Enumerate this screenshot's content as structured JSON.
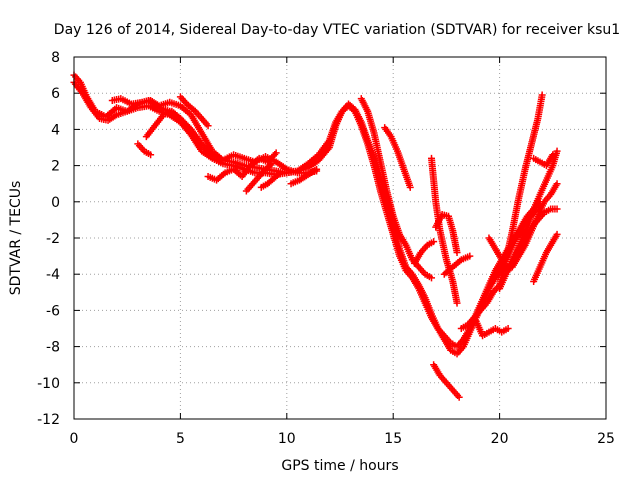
{
  "chart_data": {
    "type": "scatter",
    "title": "Day 126 of 2014, Sidereal Day-to-day VTEC variation (SDTVAR) for receiver ksu1",
    "xlabel": "GPS time / hours",
    "ylabel": "SDTVAR / TECUs",
    "xlim": [
      0,
      25
    ],
    "ylim": [
      -12,
      8
    ],
    "x_ticks": [
      0,
      5,
      10,
      15,
      20,
      25
    ],
    "y_ticks": [
      -12,
      -10,
      -8,
      -6,
      -4,
      -2,
      0,
      2,
      4,
      6,
      8
    ],
    "grid": true,
    "marker": "+",
    "color": "#ff0000",
    "series": [
      {
        "x": [
          0.0,
          0.3,
          0.6,
          1.0,
          1.5,
          2.0,
          2.5,
          3.0,
          3.5,
          4.0,
          4.5,
          5.0,
          5.5,
          6.0,
          6.5,
          7.0,
          7.5,
          8.0,
          8.5,
          9.0,
          9.5,
          10.0,
          10.5,
          11.0,
          11.5,
          12.0,
          12.3,
          12.6,
          12.9,
          13.2,
          13.5,
          13.8,
          14.1,
          14.4,
          14.7,
          15.0,
          15.3,
          15.6,
          15.9,
          16.2,
          16.5,
          16.8,
          17.1,
          17.4,
          17.7,
          18.0,
          18.3,
          18.6,
          18.9,
          19.2,
          19.5,
          19.8,
          20.1,
          20.4,
          20.7,
          21.0,
          21.3,
          21.6,
          21.9
        ],
        "y": [
          7.0,
          6.6,
          5.8,
          5.0,
          4.7,
          5.2,
          5.0,
          5.4,
          5.6,
          5.2,
          5.0,
          4.6,
          4.0,
          3.2,
          2.6,
          2.3,
          2.2,
          2.0,
          1.9,
          1.8,
          1.7,
          1.6,
          1.7,
          1.9,
          2.3,
          3.0,
          4.2,
          5.0,
          5.4,
          5.1,
          4.4,
          3.4,
          2.5,
          1.4,
          0.2,
          -1.2,
          -2.6,
          -3.6,
          -4.0,
          -4.6,
          -5.3,
          -6.2,
          -7.0,
          -7.6,
          -8.2,
          -8.4,
          -8.0,
          -7.2,
          -6.4,
          -5.6,
          -4.8,
          -4.2,
          -3.6,
          -3.0,
          -2.2,
          -1.6,
          -1.0,
          -0.6,
          -0.2
        ]
      },
      {
        "x": [
          0.0,
          0.4,
          0.8,
          1.2,
          1.6,
          2.0,
          2.5,
          3.0,
          3.5,
          4.0,
          4.5,
          5.0,
          5.5,
          6.0,
          6.5,
          7.0,
          7.5,
          8.0,
          8.5,
          9.0,
          9.5,
          10.0,
          10.5,
          11.0,
          11.5,
          12.0,
          12.3,
          12.6,
          12.9,
          13.2,
          13.5,
          13.8,
          14.1,
          14.4,
          14.7,
          15.0,
          15.3,
          15.6,
          15.9,
          16.2,
          16.5,
          16.8,
          17.1,
          17.4,
          17.7,
          18.0,
          18.3,
          18.6,
          18.9,
          19.2,
          19.5,
          19.8,
          20.1,
          20.4,
          20.7,
          21.0,
          21.3,
          21.6,
          21.9
        ],
        "y": [
          6.6,
          6.0,
          5.2,
          4.6,
          4.5,
          4.8,
          5.0,
          5.2,
          5.3,
          5.0,
          4.8,
          4.4,
          3.7,
          2.8,
          2.4,
          2.1,
          2.0,
          1.8,
          1.6,
          1.6,
          1.5,
          1.6,
          1.7,
          2.1,
          2.6,
          3.4,
          4.4,
          5.0,
          5.3,
          5.0,
          4.2,
          3.2,
          2.0,
          0.6,
          -0.6,
          -1.8,
          -3.0,
          -3.8,
          -4.2,
          -4.8,
          -5.6,
          -6.4,
          -7.0,
          -7.4,
          -7.8,
          -8.0,
          -7.6,
          -7.0,
          -6.2,
          -5.4,
          -4.6,
          -3.8,
          -3.2,
          -2.6,
          -2.0,
          -1.4,
          -0.8,
          -0.4,
          0.0
        ]
      },
      {
        "x": [
          1.8,
          2.2,
          2.7,
          3.2,
          3.6,
          4.0,
          4.5,
          5.0,
          5.5,
          6.0,
          6.5,
          7.0,
          7.5,
          8.0,
          8.5,
          9.0,
          9.5,
          10.0,
          10.5,
          11.0,
          11.4
        ],
        "y": [
          5.6,
          5.7,
          5.4,
          5.5,
          5.6,
          5.3,
          5.5,
          5.3,
          4.8,
          3.8,
          2.8,
          2.3,
          2.6,
          2.4,
          2.2,
          2.5,
          2.2,
          1.8,
          1.6,
          1.6,
          1.7
        ]
      },
      {
        "x": [
          3.4,
          3.8,
          4.2,
          4.6,
          5.0,
          5.4
        ],
        "y": [
          3.6,
          4.2,
          4.8,
          5.0,
          4.6,
          4.0
        ]
      },
      {
        "x": [
          3.0,
          3.3,
          3.6
        ],
        "y": [
          3.2,
          2.8,
          2.6
        ]
      },
      {
        "x": [
          5.0,
          5.3,
          5.7,
          6.0,
          6.3
        ],
        "y": [
          5.8,
          5.4,
          5.0,
          4.6,
          4.2
        ]
      },
      {
        "x": [
          6.3,
          6.7,
          7.1,
          7.5,
          7.9,
          8.3,
          8.7,
          9.1,
          9.5
        ],
        "y": [
          1.4,
          1.2,
          1.6,
          1.8,
          1.4,
          2.0,
          2.4,
          2.2,
          2.7
        ]
      },
      {
        "x": [
          8.1,
          8.4,
          8.7,
          9.0,
          9.3
        ],
        "y": [
          0.6,
          1.0,
          1.4,
          1.8,
          2.1
        ]
      },
      {
        "x": [
          8.8,
          9.1,
          9.4,
          9.7
        ],
        "y": [
          0.8,
          1.0,
          1.3,
          1.6
        ]
      },
      {
        "x": [
          10.2,
          10.6,
          11.0,
          11.4
        ],
        "y": [
          1.0,
          1.2,
          1.5,
          1.8
        ]
      },
      {
        "x": [
          13.5,
          13.8,
          14.1,
          14.4,
          14.7,
          15.0,
          15.3,
          15.6,
          15.9,
          16.2,
          16.5,
          16.8
        ],
        "y": [
          5.7,
          5.0,
          3.8,
          2.2,
          0.6,
          -0.8,
          -1.8,
          -2.4,
          -3.2,
          -3.6,
          -4.0,
          -4.2
        ]
      },
      {
        "x": [
          14.6,
          14.9,
          15.2,
          15.5,
          15.8
        ],
        "y": [
          4.1,
          3.6,
          2.8,
          1.8,
          0.8
        ]
      },
      {
        "x": [
          16.0,
          16.3,
          16.6,
          16.9
        ],
        "y": [
          -3.4,
          -2.8,
          -2.4,
          -2.2
        ]
      },
      {
        "x": [
          16.8,
          17.0,
          17.2,
          17.5,
          17.8,
          18.0
        ],
        "y": [
          2.4,
          0.0,
          -1.6,
          -3.2,
          -4.4,
          -5.6
        ]
      },
      {
        "x": [
          17.0,
          17.3,
          17.6,
          17.8,
          18.0
        ],
        "y": [
          -1.4,
          -0.7,
          -0.8,
          -1.6,
          -2.8
        ]
      },
      {
        "x": [
          17.4,
          17.8,
          18.2,
          18.6
        ],
        "y": [
          -4.0,
          -3.6,
          -3.2,
          -3.0
        ]
      },
      {
        "x": [
          16.9,
          17.2,
          17.5,
          17.8,
          18.1
        ],
        "y": [
          -9.0,
          -9.6,
          -10.0,
          -10.4,
          -10.8
        ]
      },
      {
        "x": [
          19.5,
          19.8,
          20.1,
          20.4
        ],
        "y": [
          -2.0,
          -2.6,
          -3.2,
          -3.8
        ]
      },
      {
        "x": [
          18.9,
          19.2,
          19.5,
          19.8,
          20.1,
          20.4
        ],
        "y": [
          -6.6,
          -7.4,
          -7.2,
          -7.0,
          -7.2,
          -7.0
        ]
      },
      {
        "x": [
          18.2,
          18.5,
          18.8,
          19.1,
          19.4,
          19.7,
          20.0,
          20.3,
          20.6,
          20.9,
          21.2,
          21.5,
          21.8,
          22.0
        ],
        "y": [
          -7.0,
          -6.8,
          -6.4,
          -6.0,
          -5.6,
          -5.0,
          -4.6,
          -3.2,
          -1.6,
          0.2,
          1.8,
          3.2,
          4.6,
          5.9
        ]
      },
      {
        "x": [
          20.0,
          20.3,
          20.6,
          20.9,
          21.2,
          21.5,
          21.8,
          22.1,
          22.4,
          22.7
        ],
        "y": [
          -4.8,
          -4.0,
          -3.2,
          -2.6,
          -2.0,
          -1.4,
          -1.0,
          -0.6,
          -0.4,
          -0.4
        ]
      },
      {
        "x": [
          20.4,
          20.7,
          21.0,
          21.3,
          21.6,
          21.9,
          22.2,
          22.5,
          22.7
        ],
        "y": [
          -3.8,
          -3.2,
          -2.2,
          -1.4,
          -0.4,
          0.4,
          1.2,
          2.0,
          2.8
        ]
      },
      {
        "x": [
          20.6,
          20.9,
          21.2,
          21.5,
          21.8,
          22.1,
          22.4,
          22.7
        ],
        "y": [
          -3.6,
          -3.0,
          -2.4,
          -1.6,
          -0.8,
          0.0,
          0.4,
          1.0
        ]
      },
      {
        "x": [
          21.6,
          21.9,
          22.2,
          22.5,
          22.7
        ],
        "y": [
          -4.4,
          -3.6,
          -2.8,
          -2.2,
          -1.8
        ]
      },
      {
        "x": [
          21.6,
          21.9,
          22.2,
          22.5
        ],
        "y": [
          2.4,
          2.2,
          2.0,
          2.6
        ]
      }
    ]
  }
}
